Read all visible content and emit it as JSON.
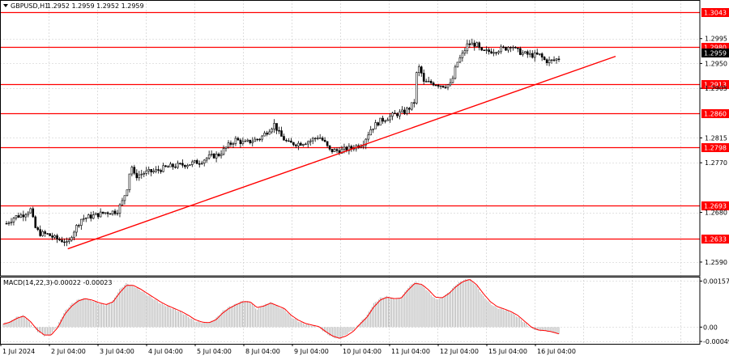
{
  "header": {
    "symbol_label": "GBPUSD,H1",
    "ohlc": "1.2952 1.2959 1.2952 1.2959"
  },
  "colors": {
    "background": "#ffffff",
    "grid": "#c8c8c8",
    "level_line": "#ff0000",
    "level_tag_bg": "#ff0000",
    "price_tag_bg": "#000000",
    "candle": "#000000",
    "macd_hist": "#b4b4b4",
    "signal_line": "#ff0000",
    "text": "#000000"
  },
  "chart_data": [
    {
      "type": "candlestick",
      "name": "GBPUSD,H1",
      "ylim": [
        1.2565,
        1.3065
      ],
      "y_ticks": [
        1.259,
        1.268,
        1.277,
        1.2815,
        1.2905,
        1.295,
        1.2995
      ],
      "x_labels": [
        "1 Jul 2024",
        "2 Jul 04:00",
        "3 Jul 04:00",
        "4 Jul 04:00",
        "5 Jul 04:00",
        "8 Jul 04:00",
        "9 Jul 04:00",
        "10 Jul 04:00",
        "11 Jul 04:00",
        "12 Jul 04:00",
        "15 Jul 04:00",
        "16 Jul 04:00"
      ],
      "grid": true,
      "current_price": "1.2959",
      "levels": [
        "1.3043",
        "1.2980",
        "1.2913",
        "1.2860",
        "1.2798",
        "1.2693",
        "1.2633"
      ],
      "trendline": {
        "from": {
          "bar": 0.111,
          "price": 1.2614
        },
        "to": {
          "bar": 1.0,
          "price": 1.296
        }
      },
      "price_path": [
        [
          0.0,
          1.266
        ],
        [
          0.015,
          1.2672
        ],
        [
          0.03,
          1.2676
        ],
        [
          0.045,
          1.2686
        ],
        [
          0.05,
          1.2655
        ],
        [
          0.06,
          1.2642
        ],
        [
          0.075,
          1.264
        ],
        [
          0.09,
          1.2632
        ],
        [
          0.105,
          1.2628
        ],
        [
          0.111,
          1.262
        ],
        [
          0.118,
          1.264
        ],
        [
          0.135,
          1.2668
        ],
        [
          0.15,
          1.2672
        ],
        [
          0.165,
          1.2676
        ],
        [
          0.18,
          1.268
        ],
        [
          0.2,
          1.2682
        ],
        [
          0.21,
          1.27
        ],
        [
          0.22,
          1.273
        ],
        [
          0.225,
          1.277
        ],
        [
          0.232,
          1.2745
        ],
        [
          0.25,
          1.2752
        ],
        [
          0.27,
          1.2755
        ],
        [
          0.29,
          1.2762
        ],
        [
          0.31,
          1.2765
        ],
        [
          0.33,
          1.2768
        ],
        [
          0.35,
          1.2772
        ],
        [
          0.365,
          1.278
        ],
        [
          0.385,
          1.2785
        ],
        [
          0.4,
          1.28
        ],
        [
          0.415,
          1.2812
        ],
        [
          0.43,
          1.2805
        ],
        [
          0.445,
          1.281
        ],
        [
          0.46,
          1.2815
        ],
        [
          0.475,
          1.283
        ],
        [
          0.485,
          1.284
        ],
        [
          0.495,
          1.282
        ],
        [
          0.51,
          1.2805
        ],
        [
          0.53,
          1.2805
        ],
        [
          0.55,
          1.281
        ],
        [
          0.565,
          1.2818
        ],
        [
          0.575,
          1.2808
        ],
        [
          0.585,
          1.2792
        ],
        [
          0.605,
          1.2792
        ],
        [
          0.625,
          1.2797
        ],
        [
          0.645,
          1.2805
        ],
        [
          0.66,
          1.2832
        ],
        [
          0.675,
          1.2845
        ],
        [
          0.69,
          1.2852
        ],
        [
          0.705,
          1.2858
        ],
        [
          0.72,
          1.2862
        ],
        [
          0.73,
          1.287
        ],
        [
          0.738,
          1.288
        ],
        [
          0.742,
          1.293
        ],
        [
          0.748,
          1.2945
        ],
        [
          0.755,
          1.2915
        ],
        [
          0.77,
          1.2915
        ],
        [
          0.79,
          1.291
        ],
        [
          0.805,
          1.2912
        ],
        [
          0.815,
          1.295
        ],
        [
          0.825,
          1.2965
        ],
        [
          0.835,
          1.2985
        ],
        [
          0.85,
          1.2985
        ],
        [
          0.86,
          1.297
        ],
        [
          0.875,
          1.2972
        ],
        [
          0.89,
          1.2975
        ],
        [
          0.905,
          1.2978
        ],
        [
          0.915,
          1.2985
        ],
        [
          0.92,
          1.2975
        ],
        [
          0.935,
          1.2968
        ],
        [
          0.95,
          1.2965
        ],
        [
          0.965,
          1.2965
        ],
        [
          0.975,
          1.2955
        ],
        [
          0.985,
          1.2954
        ],
        [
          1.0,
          1.2959
        ]
      ]
    },
    {
      "type": "bar",
      "name": "MACD(14,22,3)",
      "values_label": "-0.00022 -0.00023",
      "ylim": [
        -0.00057,
        0.00172
      ],
      "y_ticks": [
        0.00157,
        0.0,
        -0.00049
      ],
      "y_tick_labels": [
        "0.00157",
        "0.00",
        "-0.00049"
      ],
      "series": [
        {
          "kind": "histogram",
          "values": [
            0.00012,
            0.0002,
            0.00035,
            0.0004,
            0.0001,
            -0.00015,
            -0.0003,
            -0.00025,
            0.0001,
            0.00055,
            0.0008,
            0.00095,
            0.00098,
            0.0009,
            0.0008,
            0.00075,
            0.0009,
            0.0013,
            0.0015,
            0.0014,
            0.00125,
            0.0011,
            0.00095,
            0.0008,
            0.0007,
            0.0006,
            0.0005,
            0.00035,
            0.0002,
            0.00015,
            0.00015,
            0.0003,
            0.00055,
            0.0007,
            0.0008,
            0.0009,
            0.00085,
            0.0006,
            0.00075,
            0.00085,
            0.0007,
            0.0006,
            0.00035,
            0.0002,
            0.0001,
            5e-05,
            0.0,
            -0.0002,
            -0.00035,
            -0.0004,
            -0.00025,
            -0.0001,
            0.00015,
            0.0004,
            0.0008,
            0.001,
            0.00105,
            0.00095,
            0.001,
            0.00135,
            0.00155,
            0.00145,
            0.0012,
            0.00095,
            0.001,
            0.0012,
            0.00145,
            0.0016,
            0.00165,
            0.0014,
            0.00105,
            0.0008,
            0.00065,
            0.0006,
            0.0005,
            0.00035,
            0.00015,
            -5e-05,
            -0.00012,
            -0.00012,
            -0.00018,
            -0.00022
          ]
        },
        {
          "kind": "signal",
          "values": [
            0.0001,
            0.00017,
            0.0003,
            0.00038,
            0.00018,
            -0.0001,
            -0.00027,
            -0.00027,
            0.0,
            0.00045,
            0.00072,
            0.0009,
            0.00097,
            0.00092,
            0.00083,
            0.00077,
            0.00086,
            0.00118,
            0.00143,
            0.00142,
            0.0013,
            0.00115,
            0.001,
            0.00085,
            0.00073,
            0.00063,
            0.00053,
            0.0004,
            0.00025,
            0.00017,
            0.00015,
            0.00025,
            0.00048,
            0.00065,
            0.00077,
            0.00087,
            0.00086,
            0.00067,
            0.00072,
            0.00082,
            0.00073,
            0.00063,
            0.0004,
            0.00024,
            0.00013,
            7e-05,
            2e-05,
            -0.00015,
            -0.0003,
            -0.00038,
            -0.0003,
            -0.00015,
            0.0001,
            0.00033,
            0.00068,
            0.00093,
            0.00102,
            0.00097,
            0.00099,
            0.00126,
            0.00149,
            0.00146,
            0.00127,
            0.00102,
            0.001,
            0.00115,
            0.00138,
            0.00155,
            0.00163,
            0.00145,
            0.00114,
            0.00087,
            0.0007,
            0.00062,
            0.00053,
            0.0004,
            0.0002,
            0.0,
            -0.0001,
            -0.00012,
            -0.00016,
            -0.00023
          ]
        }
      ]
    }
  ]
}
